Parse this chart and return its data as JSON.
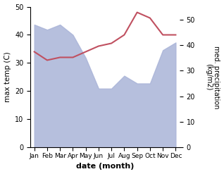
{
  "months": [
    "Jan",
    "Feb",
    "Mar",
    "Apr",
    "May",
    "Jun",
    "Jul",
    "Aug",
    "Sep",
    "Oct",
    "Nov",
    "Dec"
  ],
  "precipitation": [
    48,
    46,
    48,
    44,
    35,
    23,
    23,
    28,
    25,
    25,
    38,
    41
  ],
  "max_temp": [
    34,
    31,
    32,
    32,
    34,
    36,
    37,
    40,
    48,
    46,
    40,
    40
  ],
  "precip_color": "#aab4d8",
  "temp_line_color": "#c05060",
  "ylabel_left": "max temp (C)",
  "ylabel_right": "med. precipitation\n(kg/m2)",
  "xlabel": "date (month)",
  "ylim_left": [
    0,
    50
  ],
  "ylim_right": [
    0,
    55
  ],
  "left_ticks": [
    0,
    10,
    20,
    30,
    40,
    50
  ],
  "right_ticks": [
    0,
    10,
    20,
    30,
    40,
    50
  ],
  "bg_color": "#ffffff"
}
